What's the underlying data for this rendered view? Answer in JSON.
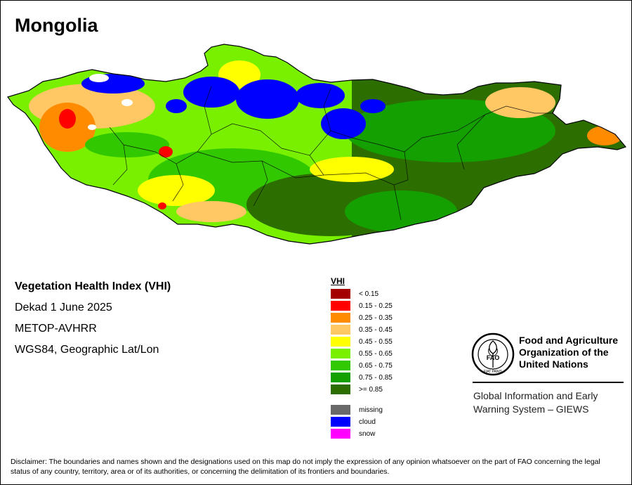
{
  "title": "Mongolia",
  "info": {
    "index_name": "Vegetation Health Index (VHI)",
    "dekad": "Dekad 1 June 2025",
    "sensor": "METOP-AVHRR",
    "projection": "WGS84, Geographic Lat/Lon"
  },
  "legend": {
    "title": "VHI",
    "classes": [
      {
        "label": "< 0.15",
        "color": "#a50000"
      },
      {
        "label": "0.15 - 0.25",
        "color": "#ff0000"
      },
      {
        "label": "0.25 - 0.35",
        "color": "#ff8c00"
      },
      {
        "label": "0.35 - 0.45",
        "color": "#ffc864"
      },
      {
        "label": "0.45 - 0.55",
        "color": "#ffff00"
      },
      {
        "label": "0.55 - 0.65",
        "color": "#78f000"
      },
      {
        "label": "0.65 - 0.75",
        "color": "#32c800"
      },
      {
        "label": "0.75 - 0.85",
        "color": "#14a000"
      },
      {
        "label": ">= 0.85",
        "color": "#2d6e00"
      }
    ],
    "special": [
      {
        "label": "missing",
        "color": "#696969"
      },
      {
        "label": "cloud",
        "color": "#0000ff"
      },
      {
        "label": "snow",
        "color": "#ff00ff"
      }
    ]
  },
  "organization": {
    "logo_text": "FAO",
    "logo_motto": "FIAT PANIS",
    "name_lines": [
      "Food and Agriculture",
      "Organization of the",
      "United Nations"
    ],
    "system_lines": [
      "Global Information and Early",
      "Warning System – GIEWS"
    ]
  },
  "disclaimer": "Disclaimer: The boundaries and names shown and the designations used on this map do not imply the expression of any opinion whatsoever on the part of FAO concerning the legal status of any country, territory, area or of its authorities, or concerning the delimitation of its frontiers and boundaries."
}
